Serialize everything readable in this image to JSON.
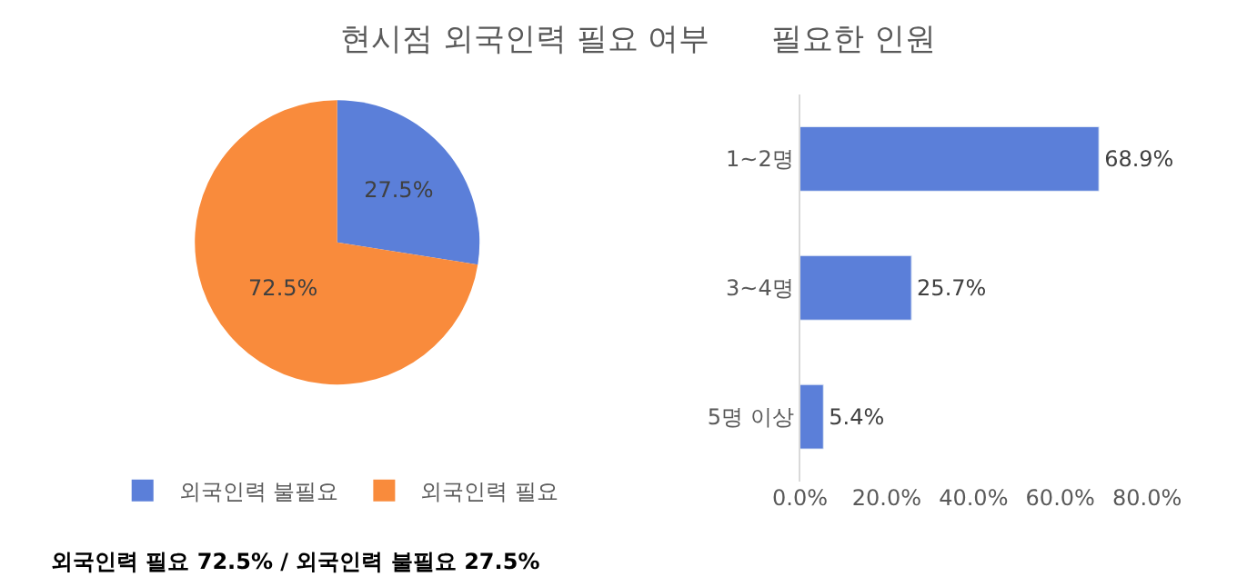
{
  "chart_data": [
    {
      "type": "pie",
      "title": "현시점 외국인력 필요 여부",
      "categories": [
        "외국인력 불필요",
        "외국인력 필요"
      ],
      "values": [
        27.5,
        72.5
      ],
      "colors": [
        "#5b7fd9",
        "#f98b3c"
      ],
      "value_labels": [
        "27.5%",
        "72.5%"
      ],
      "legend": "bottom",
      "annotations": [
        "외국인력 필요 72.5% / 외국인력 불필요 27.5%"
      ]
    },
    {
      "type": "bar",
      "orientation": "horizontal",
      "title": "필요한 인원",
      "categories": [
        "1~2명",
        "3~4명",
        "5명 이상"
      ],
      "values": [
        68.9,
        25.7,
        5.4
      ],
      "value_labels": [
        "68.9%",
        "25.7%",
        "5.4%"
      ],
      "color": "#5b7fd9",
      "xlim": [
        0,
        80
      ],
      "xticks": [
        {
          "value": 0,
          "label": "0.0%"
        },
        {
          "value": 20,
          "label": "20.0%"
        },
        {
          "value": 40,
          "label": "40.0%"
        },
        {
          "value": 60,
          "label": "60.0%"
        },
        {
          "value": 80,
          "label": "80.0%"
        }
      ],
      "grid": false,
      "legend": false
    }
  ]
}
